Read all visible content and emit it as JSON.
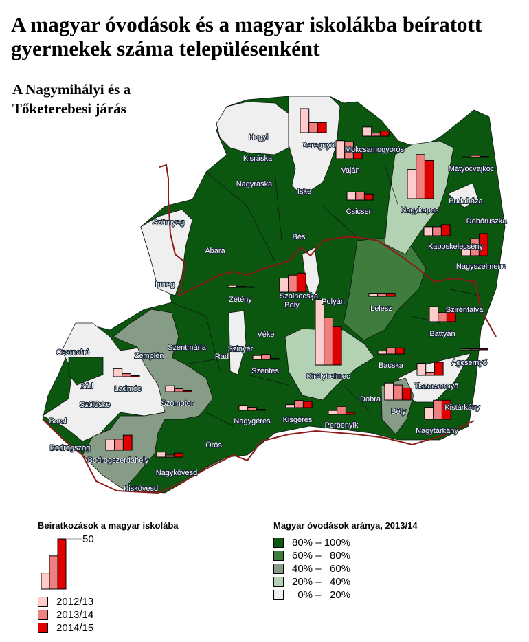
{
  "title_line1": "A magyar óvodások és a magyar iskolákba beíratott",
  "title_line2": "gyermekek száma településenként",
  "subtitle_line1": "A Nagymihályi és a",
  "subtitle_line2": "Tőketerebesi járás",
  "colors": {
    "class_80_100": "#0b5710",
    "class_60_80": "#3e7d3e",
    "class_40_60": "#869c86",
    "class_20_40": "#b3d1b3",
    "class_0_20": "#efefef",
    "bar_2012_13": "#ffcccc",
    "bar_2013_14": "#f08080",
    "bar_2014_15": "#e00000",
    "district_border": "#8b1a1a"
  },
  "legend_bars": {
    "title": "Beiratkozások a magyar iskolába",
    "scale_label": "50",
    "scale_value": 50,
    "example_values": [
      16,
      33,
      50
    ],
    "years": [
      "2012/13",
      "2013/14",
      "2014/15"
    ]
  },
  "legend_share": {
    "title": "Magyar óvodások aránya, 2013/14",
    "classes": [
      "80% – 100%",
      "60% –   80%",
      "40% –   60%",
      "20% –   40%",
      "  0% –   20%"
    ]
  },
  "settlements": [
    {
      "name": "Hegyi"
    },
    {
      "name": "Kisráska"
    },
    {
      "name": "Deregnyő",
      "enrolment": [
        24,
        10,
        10
      ]
    },
    {
      "name": "Mokcsamogyorós",
      "enrolment": [
        9,
        3,
        5
      ]
    },
    {
      "name": "Vaján",
      "enrolment": [
        18,
        17,
        6
      ]
    },
    {
      "name": "Iske"
    },
    {
      "name": "Nagyráska"
    },
    {
      "name": "Mátyócvajkóc",
      "enrolment": [
        0,
        2,
        1
      ]
    },
    {
      "name": "Budaháza"
    },
    {
      "name": "Nagykapos",
      "enrolment": [
        29,
        44,
        38
      ]
    },
    {
      "name": "Csicser",
      "enrolment": [
        8,
        8,
        6
      ]
    },
    {
      "name": "Dobóruszka"
    },
    {
      "name": "Szürnyeg"
    },
    {
      "name": "Abara"
    },
    {
      "name": "Bés"
    },
    {
      "name": "Kaposkelecsény",
      "enrolment": [
        9,
        9,
        11
      ]
    },
    {
      "name": "Nagyszelmenc",
      "enrolment": [
        9,
        17,
        22
      ]
    },
    {
      "name": "Imreg"
    },
    {
      "name": "Zétény",
      "enrolment": [
        2,
        1,
        0
      ]
    },
    {
      "name": "Szolnocska",
      "enrolment": [
        14,
        17,
        19
      ]
    },
    {
      "name": "Boly"
    },
    {
      "name": "Polyán"
    },
    {
      "name": "Lelesz",
      "enrolment": [
        3,
        3,
        3
      ]
    },
    {
      "name": "Szirénfalva"
    },
    {
      "name": "Battyán",
      "enrolment": [
        15,
        9,
        12
      ]
    },
    {
      "name": "Véke"
    },
    {
      "name": "Szentmária"
    },
    {
      "name": "Szinyér"
    },
    {
      "name": "Rad"
    },
    {
      "name": "Csarnahó"
    },
    {
      "name": "Zemplén"
    },
    {
      "name": "Szentes",
      "enrolment": [
        4,
        5,
        1
      ]
    },
    {
      "name": "Ladmóc",
      "enrolment": [
        8,
        3,
        1
      ]
    },
    {
      "name": "Bacska",
      "enrolment": [
        3,
        6,
        6
      ]
    },
    {
      "name": "Királyhelmec",
      "enrolment": [
        65,
        47,
        38
      ]
    },
    {
      "name": "Ágcsernyő",
      "enrolment": [
        1,
        1,
        1
      ]
    },
    {
      "name": "Bári"
    },
    {
      "name": "Szőlőske"
    },
    {
      "name": "Szomotor",
      "enrolment": [
        6,
        3,
        1
      ]
    },
    {
      "name": "Tiszacsernyő",
      "enrolment": [
        12,
        3,
        13
      ]
    },
    {
      "name": "Dobra"
    },
    {
      "name": "Borsi"
    },
    {
      "name": "Nagygéres",
      "enrolment": [
        5,
        3,
        1
      ]
    },
    {
      "name": "Kisgéres",
      "enrolment": [
        3,
        7,
        6
      ]
    },
    {
      "name": "Perbenyik",
      "enrolment": [
        4,
        8,
        2
      ]
    },
    {
      "name": "Bély",
      "enrolment": [
        17,
        15,
        12
      ]
    },
    {
      "name": "Kistárkány",
      "enrolment": [
        12,
        19,
        19
      ]
    },
    {
      "name": "Nagytárkány"
    },
    {
      "name": "Bodrogszög",
      "enrolment": [
        11,
        11,
        15
      ]
    },
    {
      "name": "Bodrogszerdahely"
    },
    {
      "name": "Őrös"
    },
    {
      "name": "Nagykövesd",
      "enrolment": [
        5,
        2,
        4
      ]
    },
    {
      "name": "Kiskövesd"
    }
  ]
}
